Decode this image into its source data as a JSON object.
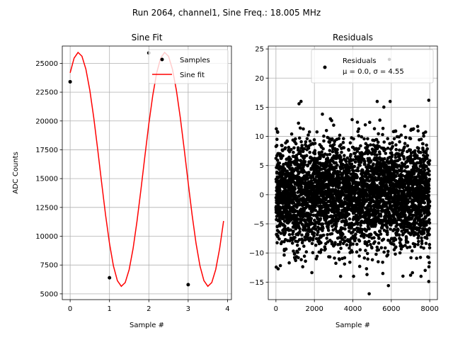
{
  "suptitle": "Run 2064, channel1, Sine Freq.: 18.005 MHz",
  "chart_data": [
    {
      "type": "line",
      "title": "Sine Fit",
      "xlabel": "Sample #",
      "ylabel": "ADC Counts",
      "xlim": [
        -0.2,
        4.1
      ],
      "ylim": [
        4500,
        26500
      ],
      "xticks": [
        0,
        1,
        2,
        3,
        4
      ],
      "xtick_labels": [
        "0",
        "1",
        "2",
        "3",
        "4"
      ],
      "yticks": [
        5000,
        7500,
        10000,
        12500,
        15000,
        17500,
        20000,
        22500,
        25000
      ],
      "ytick_labels": [
        "5000",
        "7500",
        "10000",
        "12500",
        "15000",
        "17500",
        "20000",
        "22500",
        "25000"
      ],
      "grid": true,
      "legend_position": "top-right",
      "series": [
        {
          "name": "Samples",
          "style": "scatter",
          "color": "#000000",
          "x": [
            0,
            1,
            2,
            3
          ],
          "y": [
            23400,
            6400,
            25900,
            5800
          ]
        },
        {
          "name": "Sine fit",
          "style": "line",
          "color": "#ff0000",
          "model": {
            "amplitude": 10150,
            "offset": 15800,
            "period": 2.2,
            "phase": 0.971,
            "x_start": 0,
            "x_end": 3.9,
            "x_step": 0.1
          }
        }
      ]
    },
    {
      "type": "scatter",
      "title": "Residuals",
      "xlabel": "Sample #",
      "ylabel": "",
      "xlim": [
        -400,
        8400
      ],
      "ylim": [
        -18,
        25.5
      ],
      "xticks": [
        0,
        2000,
        4000,
        6000,
        8000
      ],
      "xtick_labels": [
        "0",
        "2000",
        "4000",
        "6000",
        "8000"
      ],
      "yticks": [
        -15,
        -10,
        -5,
        0,
        5,
        10,
        15,
        20,
        25
      ],
      "ytick_labels": [
        "−15",
        "−10",
        "−5",
        "0",
        "5",
        "10",
        "15",
        "20",
        "25"
      ],
      "grid": true,
      "legend_position": "top-right",
      "series": [
        {
          "name": "Residuals",
          "color": "#000000",
          "n_points": 8000,
          "mean": 0.0,
          "sigma": 4.55,
          "notable_points": [
            [
              5900,
              23.2
            ],
            [
              4850,
              -17.0
            ],
            [
              5850,
              -15.6
            ],
            [
              7950,
              -14.9
            ],
            [
              1200,
              15.6
            ],
            [
              7950,
              16.2
            ]
          ]
        }
      ],
      "legend_lines": [
        "Residuals",
        "μ = 0.0, σ = 4.55"
      ]
    }
  ]
}
